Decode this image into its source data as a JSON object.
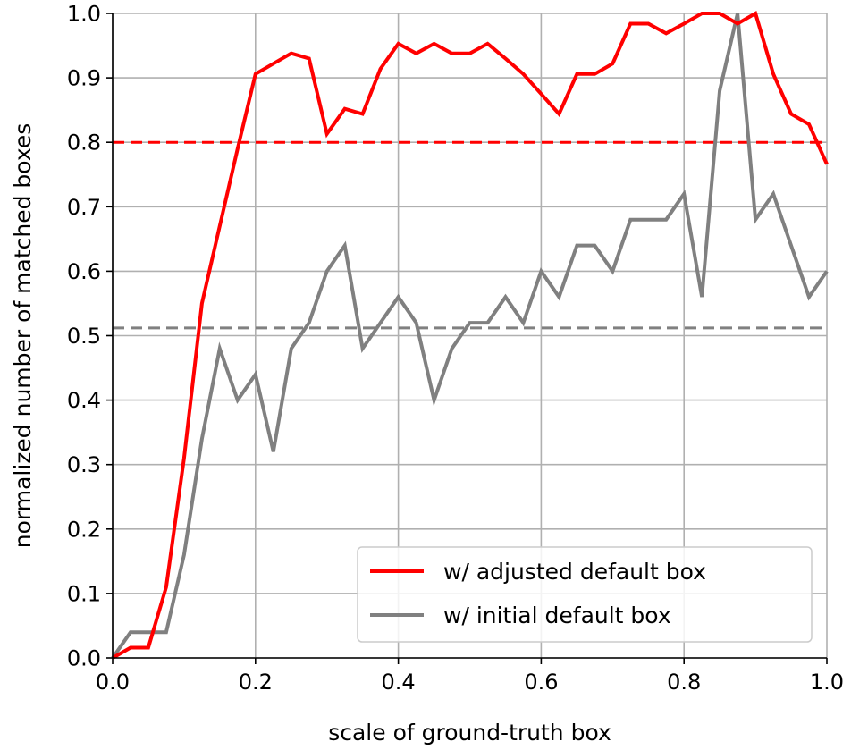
{
  "chart_data": {
    "type": "line",
    "title": "",
    "xlabel": "scale of ground-truth box",
    "ylabel": "normalized number of matched boxes",
    "xlim": [
      0.0,
      1.0
    ],
    "ylim": [
      0.0,
      1.0
    ],
    "xticks": [
      0.0,
      0.2,
      0.4,
      0.6,
      0.8,
      1.0
    ],
    "xtick_labels": [
      "0.0",
      "0.2",
      "0.4",
      "0.6",
      "0.8",
      "1.0"
    ],
    "yticks": [
      0.0,
      0.1,
      0.2,
      0.3,
      0.4,
      0.5,
      0.6,
      0.7,
      0.8,
      0.9,
      1.0
    ],
    "ytick_labels": [
      "0.0",
      "0.1",
      "0.2",
      "0.3",
      "0.4",
      "0.5",
      "0.6",
      "0.7",
      "0.8",
      "0.9",
      "1.0"
    ],
    "grid": true,
    "legend_position": "bottom-right",
    "x": [
      0.0,
      0.025,
      0.05,
      0.075,
      0.1,
      0.125,
      0.15,
      0.175,
      0.2,
      0.225,
      0.25,
      0.275,
      0.3,
      0.325,
      0.35,
      0.375,
      0.4,
      0.425,
      0.45,
      0.475,
      0.5,
      0.525,
      0.55,
      0.575,
      0.6,
      0.625,
      0.65,
      0.675,
      0.7,
      0.725,
      0.75,
      0.775,
      0.8,
      0.825,
      0.85,
      0.875,
      0.9,
      0.925,
      0.95,
      0.975,
      1.0
    ],
    "series": [
      {
        "name": "w/ adjusted default box",
        "color": "#ff0000",
        "values": [
          0.0,
          0.016,
          0.016,
          0.11,
          0.31,
          0.55,
          0.67,
          0.79,
          0.906,
          0.922,
          0.938,
          0.93,
          0.813,
          0.852,
          0.844,
          0.914,
          0.953,
          0.938,
          0.953,
          0.938,
          0.938,
          0.953,
          0.93,
          0.906,
          0.875,
          0.844,
          0.906,
          0.906,
          0.922,
          0.984,
          0.984,
          0.969,
          0.984,
          1.0,
          1.0,
          0.984,
          1.0,
          0.906,
          0.844,
          0.828,
          0.766
        ]
      },
      {
        "name": "w/ initial default box",
        "color": "#808080",
        "values": [
          0.0,
          0.04,
          0.04,
          0.04,
          0.16,
          0.34,
          0.48,
          0.4,
          0.44,
          0.32,
          0.48,
          0.52,
          0.6,
          0.64,
          0.48,
          0.52,
          0.56,
          0.52,
          0.4,
          0.48,
          0.52,
          0.52,
          0.56,
          0.52,
          0.6,
          0.56,
          0.64,
          0.64,
          0.6,
          0.68,
          0.68,
          0.68,
          0.72,
          0.56,
          0.88,
          1.0,
          0.68,
          0.72,
          0.64,
          0.56,
          0.6
        ]
      }
    ],
    "reference_lines": [
      {
        "y": 0.8,
        "color": "#ff0000",
        "style": "dashed"
      },
      {
        "y": 0.512,
        "color": "#808080",
        "style": "dashed"
      }
    ]
  }
}
